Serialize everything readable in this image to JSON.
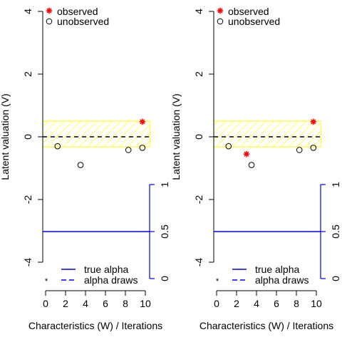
{
  "colors": {
    "observed": "#ff0000",
    "unobserved": "#000000",
    "alpha": "#0000ff",
    "band": "#ffff00",
    "axis": "#000000"
  },
  "chart_data": [
    {
      "type": "scatter",
      "title": "",
      "xlabel": "Characteristics (W) / Iterations",
      "ylabel": "Latent valuation (V)",
      "xlim": [
        0,
        10
      ],
      "ylim": [
        -4,
        4
      ],
      "x_ticks": [
        0,
        2,
        4,
        6,
        8,
        10
      ],
      "y_ticks": [
        -4,
        -2,
        0,
        2,
        4
      ],
      "x_tick_labels": [
        "0",
        "2",
        "4",
        "6",
        "8",
        "10"
      ],
      "y_tick_labels": [
        "-4",
        "-2",
        "0",
        "2",
        "4"
      ],
      "dashed_hline_y": 0,
      "band_range": [
        -0.32,
        0.5
      ],
      "series": [
        {
          "name": "observed",
          "marker": "asterisk",
          "points": [
            {
              "x": 9.7,
              "y": 0.48
            }
          ]
        },
        {
          "name": "unobserved",
          "marker": "circle",
          "points": [
            {
              "x": 1.2,
              "y": -0.3
            },
            {
              "x": 3.5,
              "y": -0.9
            },
            {
              "x": 8.3,
              "y": -0.42
            },
            {
              "x": 9.7,
              "y": -0.35
            }
          ]
        },
        {
          "name": "true alpha",
          "line": "solid",
          "y_right": 0.5
        },
        {
          "name": "alpha draws",
          "line": "dashed",
          "values": []
        }
      ],
      "right_axis": {
        "ticks": [
          0,
          0.5,
          1
        ],
        "tick_labels": [
          "0",
          "0.5",
          "1"
        ],
        "range": [
          0,
          1
        ]
      },
      "grid": false,
      "legend_top": [
        "observed",
        "unobserved"
      ],
      "legend_bottom": [
        "true alpha",
        "alpha draws"
      ]
    },
    {
      "type": "scatter",
      "title": "",
      "xlabel": "Characteristics (W) / Iterations",
      "ylabel": "Latent valuation (V)",
      "xlim": [
        0,
        10
      ],
      "ylim": [
        -4,
        4
      ],
      "x_ticks": [
        0,
        2,
        4,
        6,
        8,
        10
      ],
      "y_ticks": [
        -4,
        -2,
        0,
        2,
        4
      ],
      "x_tick_labels": [
        "0",
        "2",
        "4",
        "6",
        "8",
        "10"
      ],
      "y_tick_labels": [
        "-4",
        "-2",
        "0",
        "2",
        "4"
      ],
      "dashed_hline_y": 0,
      "band_range": [
        -0.32,
        0.5
      ],
      "series": [
        {
          "name": "observed",
          "marker": "asterisk",
          "points": [
            {
              "x": 3.0,
              "y": -0.55
            },
            {
              "x": 9.7,
              "y": 0.48
            }
          ]
        },
        {
          "name": "unobserved",
          "marker": "circle",
          "points": [
            {
              "x": 1.2,
              "y": -0.3
            },
            {
              "x": 3.5,
              "y": -0.9
            },
            {
              "x": 8.3,
              "y": -0.42
            },
            {
              "x": 9.7,
              "y": -0.35
            }
          ]
        },
        {
          "name": "true alpha",
          "line": "solid",
          "y_right": 0.5
        },
        {
          "name": "alpha draws",
          "line": "dashed",
          "values": []
        }
      ],
      "right_axis": {
        "ticks": [
          0,
          0.5,
          1
        ],
        "tick_labels": [
          "0",
          "0.5",
          "1"
        ],
        "range": [
          0,
          1
        ]
      },
      "grid": false,
      "legend_top": [
        "observed",
        "unobserved"
      ],
      "legend_bottom": [
        "true alpha",
        "alpha draws"
      ]
    }
  ]
}
